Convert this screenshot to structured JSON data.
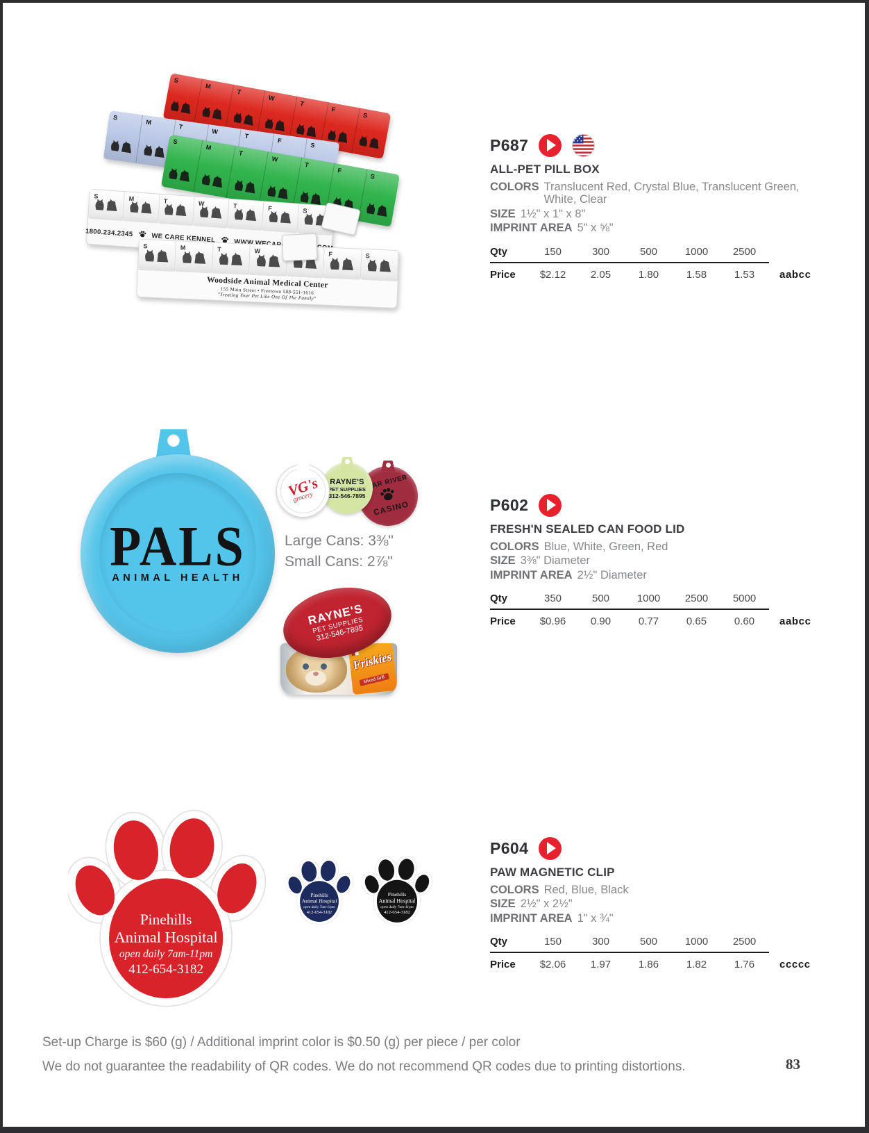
{
  "icons": {
    "play_color": "#e8212e"
  },
  "labels": {
    "colors": "COLORS",
    "size": "SIZE",
    "imprint_area": "IMPRINT AREA",
    "qty": "Qty",
    "price": "Price"
  },
  "products": [
    {
      "code": "P687",
      "name": "ALL-PET PILL BOX",
      "colors_value": "Translucent Red, Crystal Blue, Translucent Green, White, Clear",
      "size_value": "1½\" x 1\" x 8\"",
      "imprint_value": "5\" x ⅝\"",
      "qty": [
        "150",
        "300",
        "500",
        "1000",
        "2500"
      ],
      "prices": [
        "$2.12",
        "2.05",
        "1.80",
        "1.58",
        "1.53"
      ],
      "price_code": "aabcc"
    },
    {
      "code": "P602",
      "name": "FRESH'N SEALED CAN FOOD LID",
      "colors_value": "Blue, White, Green, Red",
      "size_value": "3⅜\" Diameter",
      "imprint_value": "2½\" Diameter",
      "qty": [
        "350",
        "500",
        "1000",
        "2500",
        "5000"
      ],
      "prices": [
        "$0.96",
        "0.90",
        "0.77",
        "0.65",
        "0.60"
      ],
      "price_code": "aabcc"
    },
    {
      "code": "P604",
      "name": "PAW MAGNETIC CLIP",
      "colors_value": "Red, Blue, Black",
      "size_value": "2½\" x 2½\"",
      "imprint_value": "1\" x ¾\"",
      "qty": [
        "150",
        "300",
        "500",
        "1000",
        "2500"
      ],
      "prices": [
        "$2.06",
        "1.97",
        "1.86",
        "1.82",
        "1.76"
      ],
      "price_code": "ccccc"
    }
  ],
  "pillbox_art": {
    "days": [
      "S",
      "M",
      "T",
      "W",
      "T",
      "F",
      "S"
    ],
    "strip_colors": {
      "red": "#dc251c",
      "blue": "#b9c7e6",
      "green": "#2eb34a",
      "white": "#f9f9f9",
      "clear": "#fbfbfb"
    },
    "kennel_phone": "1800.234.2345",
    "kennel_name": "WE CARE KENNEL",
    "kennel_web": "WWW.WECAREKENNEL.COM",
    "woodside_line1": "Woodside Animal Medical Center",
    "woodside_line2": "155 Main Street  •  Freetown 508-551-1616",
    "woodside_line3": "\"Treating Your Pet Like One Of The Family\""
  },
  "canlid_art": {
    "big_lid_color": "#53c4ea",
    "big_lid_line1": "PALS",
    "big_lid_line2": "ANIMAL HEALTH",
    "small_lids": [
      {
        "color": "#ffffff",
        "text_color": "#c8202f",
        "line1": "VG's",
        "line2": "grocery"
      },
      {
        "color": "#d5e5a4",
        "text_color": "#161616",
        "line1": "RAYNE'S",
        "line2": "PET SUPPLIES",
        "line3": "312-546-7895"
      },
      {
        "color": "#a02c40",
        "text_color": "#161616",
        "line1": "BEAR RIVER",
        "line2": "CASINO"
      }
    ],
    "note_line1": "Large Cans: 3⅜\"",
    "note_line2": "Small Cans: 2⅞\"",
    "can_lid_color": "#bf2430",
    "can_l1": "RAYNE'S",
    "can_l2": "PET SUPPLIES",
    "can_l3": "312-546-7895",
    "can_brand": "Friskies",
    "can_sub": "Mixed Grill"
  },
  "paw_art": {
    "colors": [
      "#d8232a",
      "#1c2a5e",
      "#141414"
    ],
    "imprint_line1": "Pinehills",
    "imprint_line2": "Animal Hospital",
    "imprint_line3": "open daily 7am-11pm",
    "imprint_line4": "412-654-3182"
  },
  "footer": {
    "line1": "Set-up Charge is $60 (g) / Additional imprint color is $0.50 (g) per piece / per color",
    "line2": "We do not guarantee the readability of QR codes. We do not recommend QR codes due to printing distortions.",
    "page_number": "83"
  }
}
